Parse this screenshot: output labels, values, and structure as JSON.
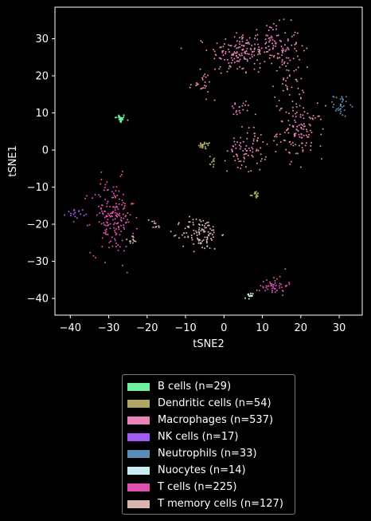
{
  "chart_data": {
    "type": "scatter",
    "title": "",
    "xlabel": "tSNE2",
    "ylabel": "tSNE1",
    "xlim": [
      -44,
      36
    ],
    "ylim": [
      -44.5,
      38.5
    ],
    "xticks": [
      -40,
      -30,
      -20,
      -10,
      0,
      10,
      20,
      30
    ],
    "yticks": [
      -40,
      -30,
      -20,
      -10,
      0,
      10,
      20,
      30
    ],
    "xtick_labels": [
      "−40",
      "−30",
      "−20",
      "−10",
      "0",
      "10",
      "20",
      "30"
    ],
    "ytick_labels": [
      "−40",
      "−30",
      "−20",
      "−10",
      "0",
      "10",
      "20",
      "30"
    ],
    "grid": false,
    "legend_position": "below plot",
    "series": [
      {
        "name": "B cells (n=29)",
        "color": "#6ef0a0",
        "n": 29,
        "clusters": [
          {
            "cx": -27,
            "cy": 8.5,
            "sx": 0.7,
            "sy": 0.6,
            "n": 29
          }
        ]
      },
      {
        "name": "Dendritic cells (n=54)",
        "color": "#b0a862",
        "n": 54,
        "clusters": [
          {
            "cx": -5,
            "cy": 1.2,
            "sx": 0.8,
            "sy": 0.5,
            "n": 28
          },
          {
            "cx": -3,
            "cy": -3,
            "sx": 0.8,
            "sy": 0.9,
            "n": 10
          },
          {
            "cx": 8,
            "cy": -12,
            "sx": 0.6,
            "sy": 0.5,
            "n": 16
          }
        ]
      },
      {
        "name": "Macrophages (n=537)",
        "color": "#e884b8",
        "n": 537,
        "clusters": [
          {
            "cx": 3,
            "cy": 26,
            "sx": 3.5,
            "sy": 3,
            "n": 110
          },
          {
            "cx": 12,
            "cy": 28,
            "sx": 4,
            "sy": 3,
            "n": 130
          },
          {
            "cx": 17,
            "cy": 19,
            "sx": 2,
            "sy": 4,
            "n": 50
          },
          {
            "cx": -6,
            "cy": 18,
            "sx": 1.5,
            "sy": 1.5,
            "n": 25
          },
          {
            "cx": 4,
            "cy": 11,
            "sx": 1.5,
            "sy": 1.2,
            "n": 20
          },
          {
            "cx": 20,
            "cy": 5,
            "sx": 3,
            "sy": 3.5,
            "n": 120
          },
          {
            "cx": 6,
            "cy": 0,
            "sx": 2.5,
            "sy": 3,
            "n": 82
          }
        ]
      },
      {
        "name": "NK cells (n=17)",
        "color": "#a35cf0",
        "n": 17,
        "clusters": [
          {
            "cx": -38.5,
            "cy": -17,
            "sx": 1.2,
            "sy": 0.6,
            "n": 17
          }
        ]
      },
      {
        "name": "Neutrophils (n=33)",
        "color": "#5b8cb8",
        "n": 33,
        "clusters": [
          {
            "cx": 30.5,
            "cy": 12,
            "sx": 1,
            "sy": 1.5,
            "n": 33
          }
        ]
      },
      {
        "name": "Nuocytes (n=14)",
        "color": "#c8eef4",
        "n": 14,
        "clusters": [
          {
            "cx": 6.5,
            "cy": -39.5,
            "sx": 0.5,
            "sy": 0.5,
            "n": 14
          }
        ]
      },
      {
        "name": "T cells (n=225)",
        "color": "#e050b0",
        "n": 225,
        "clusters": [
          {
            "cx": -29,
            "cy": -18,
            "sx": 2.8,
            "sy": 5,
            "n": 175
          },
          {
            "cx": 13,
            "cy": -36.5,
            "sx": 1.8,
            "sy": 1.3,
            "n": 50
          }
        ]
      },
      {
        "name": "T memory cells (n=127)",
        "color": "#d8b6ac",
        "n": 127,
        "clusters": [
          {
            "cx": -6,
            "cy": -22.5,
            "sx": 2.5,
            "sy": 2.2,
            "n": 105
          },
          {
            "cx": -18,
            "cy": -20,
            "sx": 0.8,
            "sy": 1,
            "n": 10
          },
          {
            "cx": -24,
            "cy": -24.5,
            "sx": 1,
            "sy": 0.9,
            "n": 12
          }
        ]
      }
    ]
  }
}
